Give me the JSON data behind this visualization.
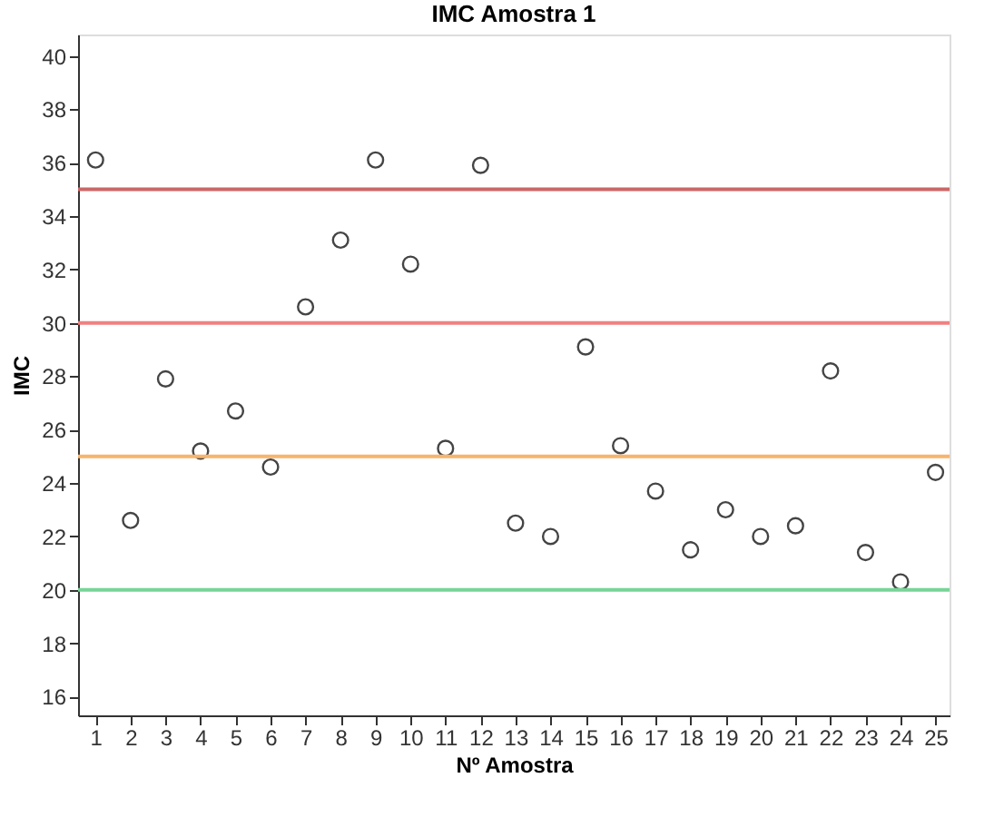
{
  "chart_data": {
    "type": "scatter",
    "title": "IMC Amostra 1",
    "xlabel": "Nº Amostra",
    "ylabel": "IMC",
    "x": [
      1,
      2,
      3,
      4,
      5,
      6,
      7,
      8,
      9,
      10,
      11,
      12,
      13,
      14,
      15,
      16,
      17,
      18,
      19,
      20,
      21,
      22,
      23,
      24,
      25
    ],
    "series": [
      {
        "color": "#444444",
        "values": [
          36.1,
          22.6,
          27.9,
          25.2,
          26.7,
          24.6,
          30.6,
          33.1,
          36.1,
          32.2,
          25.3,
          35.9,
          22.5,
          22.0,
          29.1,
          25.4,
          23.7,
          21.5,
          23.0,
          22.0,
          22.4,
          28.2,
          21.4,
          20.3,
          24.4
        ]
      }
    ],
    "marker": "circle",
    "xlim": [
      0.5,
      25.4
    ],
    "xticks": [
      1,
      2,
      3,
      4,
      5,
      6,
      7,
      8,
      9,
      10,
      11,
      12,
      13,
      14,
      15,
      16,
      17,
      18,
      19,
      20,
      21,
      22,
      23,
      24,
      25
    ],
    "ylim": [
      15.3,
      40.8
    ],
    "yticks": [
      16,
      18,
      20,
      22,
      24,
      26,
      28,
      30,
      32,
      34,
      36,
      38,
      40
    ],
    "ref_lines": [
      {
        "axis": "y",
        "value": 35,
        "color": "#cc6666"
      },
      {
        "axis": "y",
        "value": 30,
        "color": "#f08080"
      },
      {
        "axis": "y",
        "value": 25,
        "color": "#f8b46c"
      },
      {
        "axis": "y",
        "value": 20,
        "color": "#78d496"
      }
    ],
    "grid": false
  }
}
